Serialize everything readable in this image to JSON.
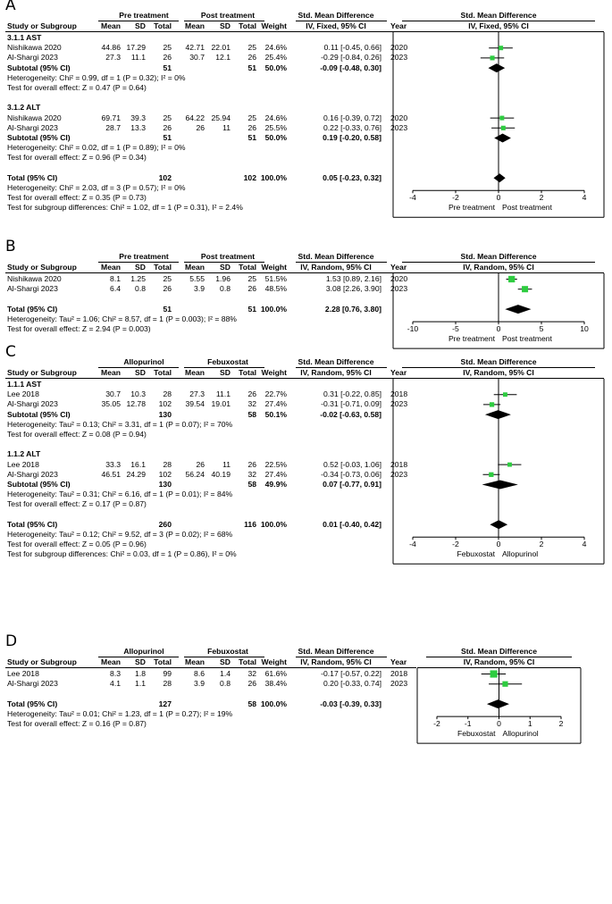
{
  "panels": [
    {
      "label": "A",
      "group1": "Pre treatment",
      "group2": "Post treatment",
      "effect_header": "Std. Mean Difference",
      "effect_sub": "IV, Fixed, 95% CI",
      "plot_header": "Std. Mean Difference",
      "plot_sub": "IV, Fixed, 95% CI",
      "col_headers": [
        "Study or Subgroup",
        "Mean",
        "SD",
        "Total",
        "Mean",
        "SD",
        "Total",
        "Weight",
        "IV, Fixed, 95% CI",
        "Year"
      ],
      "subgroups": [
        {
          "title": "3.1.1 AST",
          "studies": [
            {
              "name": "Nishikawa 2020",
              "m1": "44.86",
              "sd1": "17.29",
              "n1": "25",
              "m2": "42.71",
              "sd2": "22.01",
              "n2": "25",
              "w": "24.6%",
              "ci": "0.11 [-0.45, 0.66]",
              "year": "2020"
            },
            {
              "name": "Al-Shargi 2023",
              "m1": "27.3",
              "sd1": "11.1",
              "n1": "26",
              "m2": "30.7",
              "sd2": "12.1",
              "n2": "26",
              "w": "25.4%",
              "ci": "-0.29 [-0.84, 0.26]",
              "year": "2023"
            }
          ],
          "subtotal": {
            "label": "Subtotal (95% CI)",
            "n1": "51",
            "n2": "51",
            "w": "50.0%",
            "ci": "-0.09 [-0.48, 0.30]"
          },
          "het": "Heterogeneity: Chi² = 0.99, df = 1 (P = 0.32); I² = 0%",
          "test": "Test for overall effect: Z = 0.47 (P = 0.64)"
        },
        {
          "title": "3.1.2 ALT",
          "studies": [
            {
              "name": "Nishikawa 2020",
              "m1": "69.71",
              "sd1": "39.3",
              "n1": "25",
              "m2": "64.22",
              "sd2": "25.94",
              "n2": "25",
              "w": "24.6%",
              "ci": "0.16 [-0.39, 0.72]",
              "year": "2020"
            },
            {
              "name": "Al-Shargi 2023",
              "m1": "28.7",
              "sd1": "13.3",
              "n1": "26",
              "m2": "26",
              "sd2": "11",
              "n2": "26",
              "w": "25.5%",
              "ci": "0.22 [-0.33, 0.76]",
              "year": "2023"
            }
          ],
          "subtotal": {
            "label": "Subtotal (95% CI)",
            "n1": "51",
            "n2": "51",
            "w": "50.0%",
            "ci": "0.19 [-0.20, 0.58]"
          },
          "het": "Heterogeneity: Chi² = 0.02, df = 1 (P = 0.89); I² = 0%",
          "test": "Test for overall effect: Z = 0.96 (P = 0.34)"
        }
      ],
      "total": {
        "label": "Total (95% CI)",
        "n1": "102",
        "n2": "102",
        "w": "100.0%",
        "ci": "0.05 [-0.23, 0.32]"
      },
      "footer": [
        "Heterogeneity: Chi² = 2.03, df = 3 (P = 0.57); I² = 0%",
        "Test for overall effect: Z = 0.35 (P = 0.73)",
        "Test for subgroup differences: Chi² = 1.02, df = 1 (P = 0.31), I² = 2.4%"
      ],
      "axis": {
        "min": -4,
        "max": 4,
        "ticks": [
          "-4",
          "-2",
          "0",
          "2",
          "4"
        ],
        "left_label": "Pre treatment",
        "right_label": "Post treatment"
      }
    },
    {
      "label": "B",
      "group1": "Pre treatment",
      "group2": "Post treatment",
      "effect_header": "Std. Mean Difference",
      "effect_sub": "IV, Random, 95% CI",
      "plot_header": "Std. Mean Difference",
      "plot_sub": "IV, Random, 95% CI",
      "col_headers": [
        "Study or Subgroup",
        "Mean",
        "SD",
        "Total",
        "Mean",
        "SD",
        "Total",
        "Weight",
        "IV, Random, 95% CI",
        "Year"
      ],
      "studies": [
        {
          "name": "Nishikawa 2020",
          "m1": "8.1",
          "sd1": "1.25",
          "n1": "25",
          "m2": "5.55",
          "sd2": "1.96",
          "n2": "25",
          "w": "51.5%",
          "ci": "1.53 [0.89, 2.16]",
          "year": "2020"
        },
        {
          "name": "Al-Shargi 2023",
          "m1": "6.4",
          "sd1": "0.8",
          "n1": "26",
          "m2": "3.9",
          "sd2": "0.8",
          "n2": "26",
          "w": "48.5%",
          "ci": "3.08 [2.26, 3.90]",
          "year": "2023"
        }
      ],
      "total": {
        "label": "Total (95% CI)",
        "n1": "51",
        "n2": "51",
        "w": "100.0%",
        "ci": "2.28 [0.76, 3.80]"
      },
      "footer": [
        "Heterogeneity: Tau² = 1.06; Chi² = 8.57, df = 1 (P = 0.003); I² = 88%",
        "Test for overall effect: Z = 2.94 (P = 0.003)"
      ],
      "axis": {
        "min": -10,
        "max": 10,
        "ticks": [
          "-10",
          "-5",
          "0",
          "5",
          "10"
        ],
        "left_label": "Pre treatment",
        "right_label": "Post treatment"
      }
    },
    {
      "label": "C",
      "group1": "Allopurinol",
      "group2": "Febuxostat",
      "effect_header": "Std. Mean Difference",
      "effect_sub": "IV, Random, 95% CI",
      "plot_header": "Std. Mean Difference",
      "plot_sub": "IV, Random, 95% CI",
      "col_headers": [
        "Study or Subgroup",
        "Mean",
        "SD",
        "Total",
        "Mean",
        "SD",
        "Total",
        "Weight",
        "IV, Random, 95% CI",
        "Year"
      ],
      "subgroups": [
        {
          "title": "1.1.1 AST",
          "studies": [
            {
              "name": "Lee 2018",
              "m1": "30.7",
              "sd1": "10.3",
              "n1": "28",
              "m2": "27.3",
              "sd2": "11.1",
              "n2": "26",
              "w": "22.7%",
              "ci": "0.31 [-0.22, 0.85]",
              "year": "2018"
            },
            {
              "name": "Al-Shargi 2023",
              "m1": "35.05",
              "sd1": "12.78",
              "n1": "102",
              "m2": "39.54",
              "sd2": "19.01",
              "n2": "32",
              "w": "27.4%",
              "ci": "-0.31 [-0.71, 0.09]",
              "year": "2023"
            }
          ],
          "subtotal": {
            "label": "Subtotal (95% CI)",
            "n1": "130",
            "n2": "58",
            "w": "50.1%",
            "ci": "-0.02 [-0.63, 0.58]"
          },
          "het": "Heterogeneity: Tau² = 0.13; Chi² = 3.31, df = 1 (P = 0.07); I² = 70%",
          "test": "Test for overall effect: Z = 0.08 (P = 0.94)"
        },
        {
          "title": "1.1.2 ALT",
          "studies": [
            {
              "name": "Lee 2018",
              "m1": "33.3",
              "sd1": "16.1",
              "n1": "28",
              "m2": "26",
              "sd2": "11",
              "n2": "26",
              "w": "22.5%",
              "ci": "0.52 [-0.03, 1.06]",
              "year": "2018"
            },
            {
              "name": "Al-Shargi 2023",
              "m1": "46.51",
              "sd1": "24.29",
              "n1": "102",
              "m2": "56.24",
              "sd2": "40.19",
              "n2": "32",
              "w": "27.4%",
              "ci": "-0.34 [-0.73, 0.06]",
              "year": "2023"
            }
          ],
          "subtotal": {
            "label": "Subtotal (95% CI)",
            "n1": "130",
            "n2": "58",
            "w": "49.9%",
            "ci": "0.07 [-0.77, 0.91]"
          },
          "het": "Heterogeneity: Tau² = 0.31; Chi² = 6.16, df = 1 (P = 0.01); I² = 84%",
          "test": "Test for overall effect: Z = 0.17 (P = 0.87)"
        }
      ],
      "total": {
        "label": "Total (95% CI)",
        "n1": "260",
        "n2": "116",
        "w": "100.0%",
        "ci": "0.01 [-0.40, 0.42]"
      },
      "footer": [
        "Heterogeneity: Tau² = 0.12; Chi² = 9.52, df = 3 (P = 0.02); I² = 68%",
        "Test for overall effect: Z = 0.05 (P = 0.96)",
        "Test for subgroup differences: Chi² = 0.03, df = 1 (P = 0.86), I² = 0%"
      ],
      "axis": {
        "min": -4,
        "max": 4,
        "ticks": [
          "-4",
          "-2",
          "0",
          "2",
          "4"
        ],
        "left_label": "Febuxostat",
        "right_label": "Allopurinol"
      }
    },
    {
      "label": "D",
      "group1": "Allopurinol",
      "group2": "Febuxostat",
      "effect_header": "Std. Mean Difference",
      "effect_sub": "IV, Random, 95% CI",
      "plot_header": "Std. Mean Difference",
      "plot_sub": "IV, Random, 95% CI",
      "col_headers": [
        "Study or Subgroup",
        "Mean",
        "SD",
        "Total",
        "Mean",
        "SD",
        "Total",
        "Weight",
        "IV, Random, 95% CI",
        "Year"
      ],
      "studies": [
        {
          "name": "Lee 2018",
          "m1": "8.3",
          "sd1": "1.8",
          "n1": "99",
          "m2": "8.6",
          "sd2": "1.4",
          "n2": "32",
          "w": "61.6%",
          "ci": "-0.17 [-0.57, 0.22]",
          "year": "2018"
        },
        {
          "name": "Al-Shargi 2023",
          "m1": "4.1",
          "sd1": "1.1",
          "n1": "28",
          "m2": "3.9",
          "sd2": "0.8",
          "n2": "26",
          "w": "38.4%",
          "ci": "0.20 [-0.33, 0.74]",
          "year": "2023"
        }
      ],
      "total": {
        "label": "Total (95% CI)",
        "n1": "127",
        "n2": "58",
        "w": "100.0%",
        "ci": "-0.03 [-0.39, 0.33]"
      },
      "footer": [
        "Heterogeneity: Tau² = 0.01; Chi² = 1.23, df = 1 (P = 0.27); I² = 19%",
        "Test for overall effect: Z = 0.16 (P = 0.87)"
      ],
      "axis": {
        "min": -2,
        "max": 2,
        "ticks": [
          "-2",
          "-1",
          "0",
          "1",
          "2"
        ],
        "left_label": "Febuxostat",
        "right_label": "Allopurinol"
      }
    }
  ],
  "chart_data": [
    {
      "type": "scatter",
      "title": "A",
      "xlabel": "Std. Mean Difference (IV, Fixed, 95% CI)",
      "xlim": [
        -4,
        4
      ],
      "studies": [
        {
          "name": "Nishikawa 2020 (AST)",
          "est": 0.11,
          "lo": -0.45,
          "hi": 0.66,
          "weight": 24.6
        },
        {
          "name": "Al-Shargi 2023 (AST)",
          "est": -0.29,
          "lo": -0.84,
          "hi": 0.26,
          "weight": 25.4
        },
        {
          "name": "Nishikawa 2020 (ALT)",
          "est": 0.16,
          "lo": -0.39,
          "hi": 0.72,
          "weight": 24.6
        },
        {
          "name": "Al-Shargi 2023 (ALT)",
          "est": 0.22,
          "lo": -0.33,
          "hi": 0.76,
          "weight": 25.5
        }
      ],
      "summaries": [
        {
          "name": "Subtotal AST",
          "est": -0.09,
          "lo": -0.48,
          "hi": 0.3
        },
        {
          "name": "Subtotal ALT",
          "est": 0.19,
          "lo": -0.2,
          "hi": 0.58
        },
        {
          "name": "Total",
          "est": 0.05,
          "lo": -0.23,
          "hi": 0.32
        }
      ]
    },
    {
      "type": "scatter",
      "title": "B",
      "xlabel": "Std. Mean Difference (IV, Random, 95% CI)",
      "xlim": [
        -10,
        10
      ],
      "studies": [
        {
          "name": "Nishikawa 2020",
          "est": 1.53,
          "lo": 0.89,
          "hi": 2.16,
          "weight": 51.5
        },
        {
          "name": "Al-Shargi 2023",
          "est": 3.08,
          "lo": 2.26,
          "hi": 3.9,
          "weight": 48.5
        }
      ],
      "summaries": [
        {
          "name": "Total",
          "est": 2.28,
          "lo": 0.76,
          "hi": 3.8
        }
      ]
    },
    {
      "type": "scatter",
      "title": "C",
      "xlabel": "Std. Mean Difference (IV, Random, 95% CI)",
      "xlim": [
        -4,
        4
      ],
      "studies": [
        {
          "name": "Lee 2018 (AST)",
          "est": 0.31,
          "lo": -0.22,
          "hi": 0.85,
          "weight": 22.7
        },
        {
          "name": "Al-Shargi 2023 (AST)",
          "est": -0.31,
          "lo": -0.71,
          "hi": 0.09,
          "weight": 27.4
        },
        {
          "name": "Lee 2018 (ALT)",
          "est": 0.52,
          "lo": -0.03,
          "hi": 1.06,
          "weight": 22.5
        },
        {
          "name": "Al-Shargi 2023 (ALT)",
          "est": -0.34,
          "lo": -0.73,
          "hi": 0.06,
          "weight": 27.4
        }
      ],
      "summaries": [
        {
          "name": "Subtotal AST",
          "est": -0.02,
          "lo": -0.63,
          "hi": 0.58
        },
        {
          "name": "Subtotal ALT",
          "est": 0.07,
          "lo": -0.77,
          "hi": 0.91
        },
        {
          "name": "Total",
          "est": 0.01,
          "lo": -0.4,
          "hi": 0.42
        }
      ]
    },
    {
      "type": "scatter",
      "title": "D",
      "xlabel": "Std. Mean Difference (IV, Random, 95% CI)",
      "xlim": [
        -2,
        2
      ],
      "studies": [
        {
          "name": "Lee 2018",
          "est": -0.17,
          "lo": -0.57,
          "hi": 0.22,
          "weight": 61.6
        },
        {
          "name": "Al-Shargi 2023",
          "est": 0.2,
          "lo": -0.33,
          "hi": 0.74,
          "weight": 38.4
        }
      ],
      "summaries": [
        {
          "name": "Total",
          "est": -0.03,
          "lo": -0.39,
          "hi": 0.33
        }
      ]
    }
  ],
  "colors": {
    "marker": "#2ecc40",
    "diamond": "#000000",
    "line": "#000000"
  }
}
